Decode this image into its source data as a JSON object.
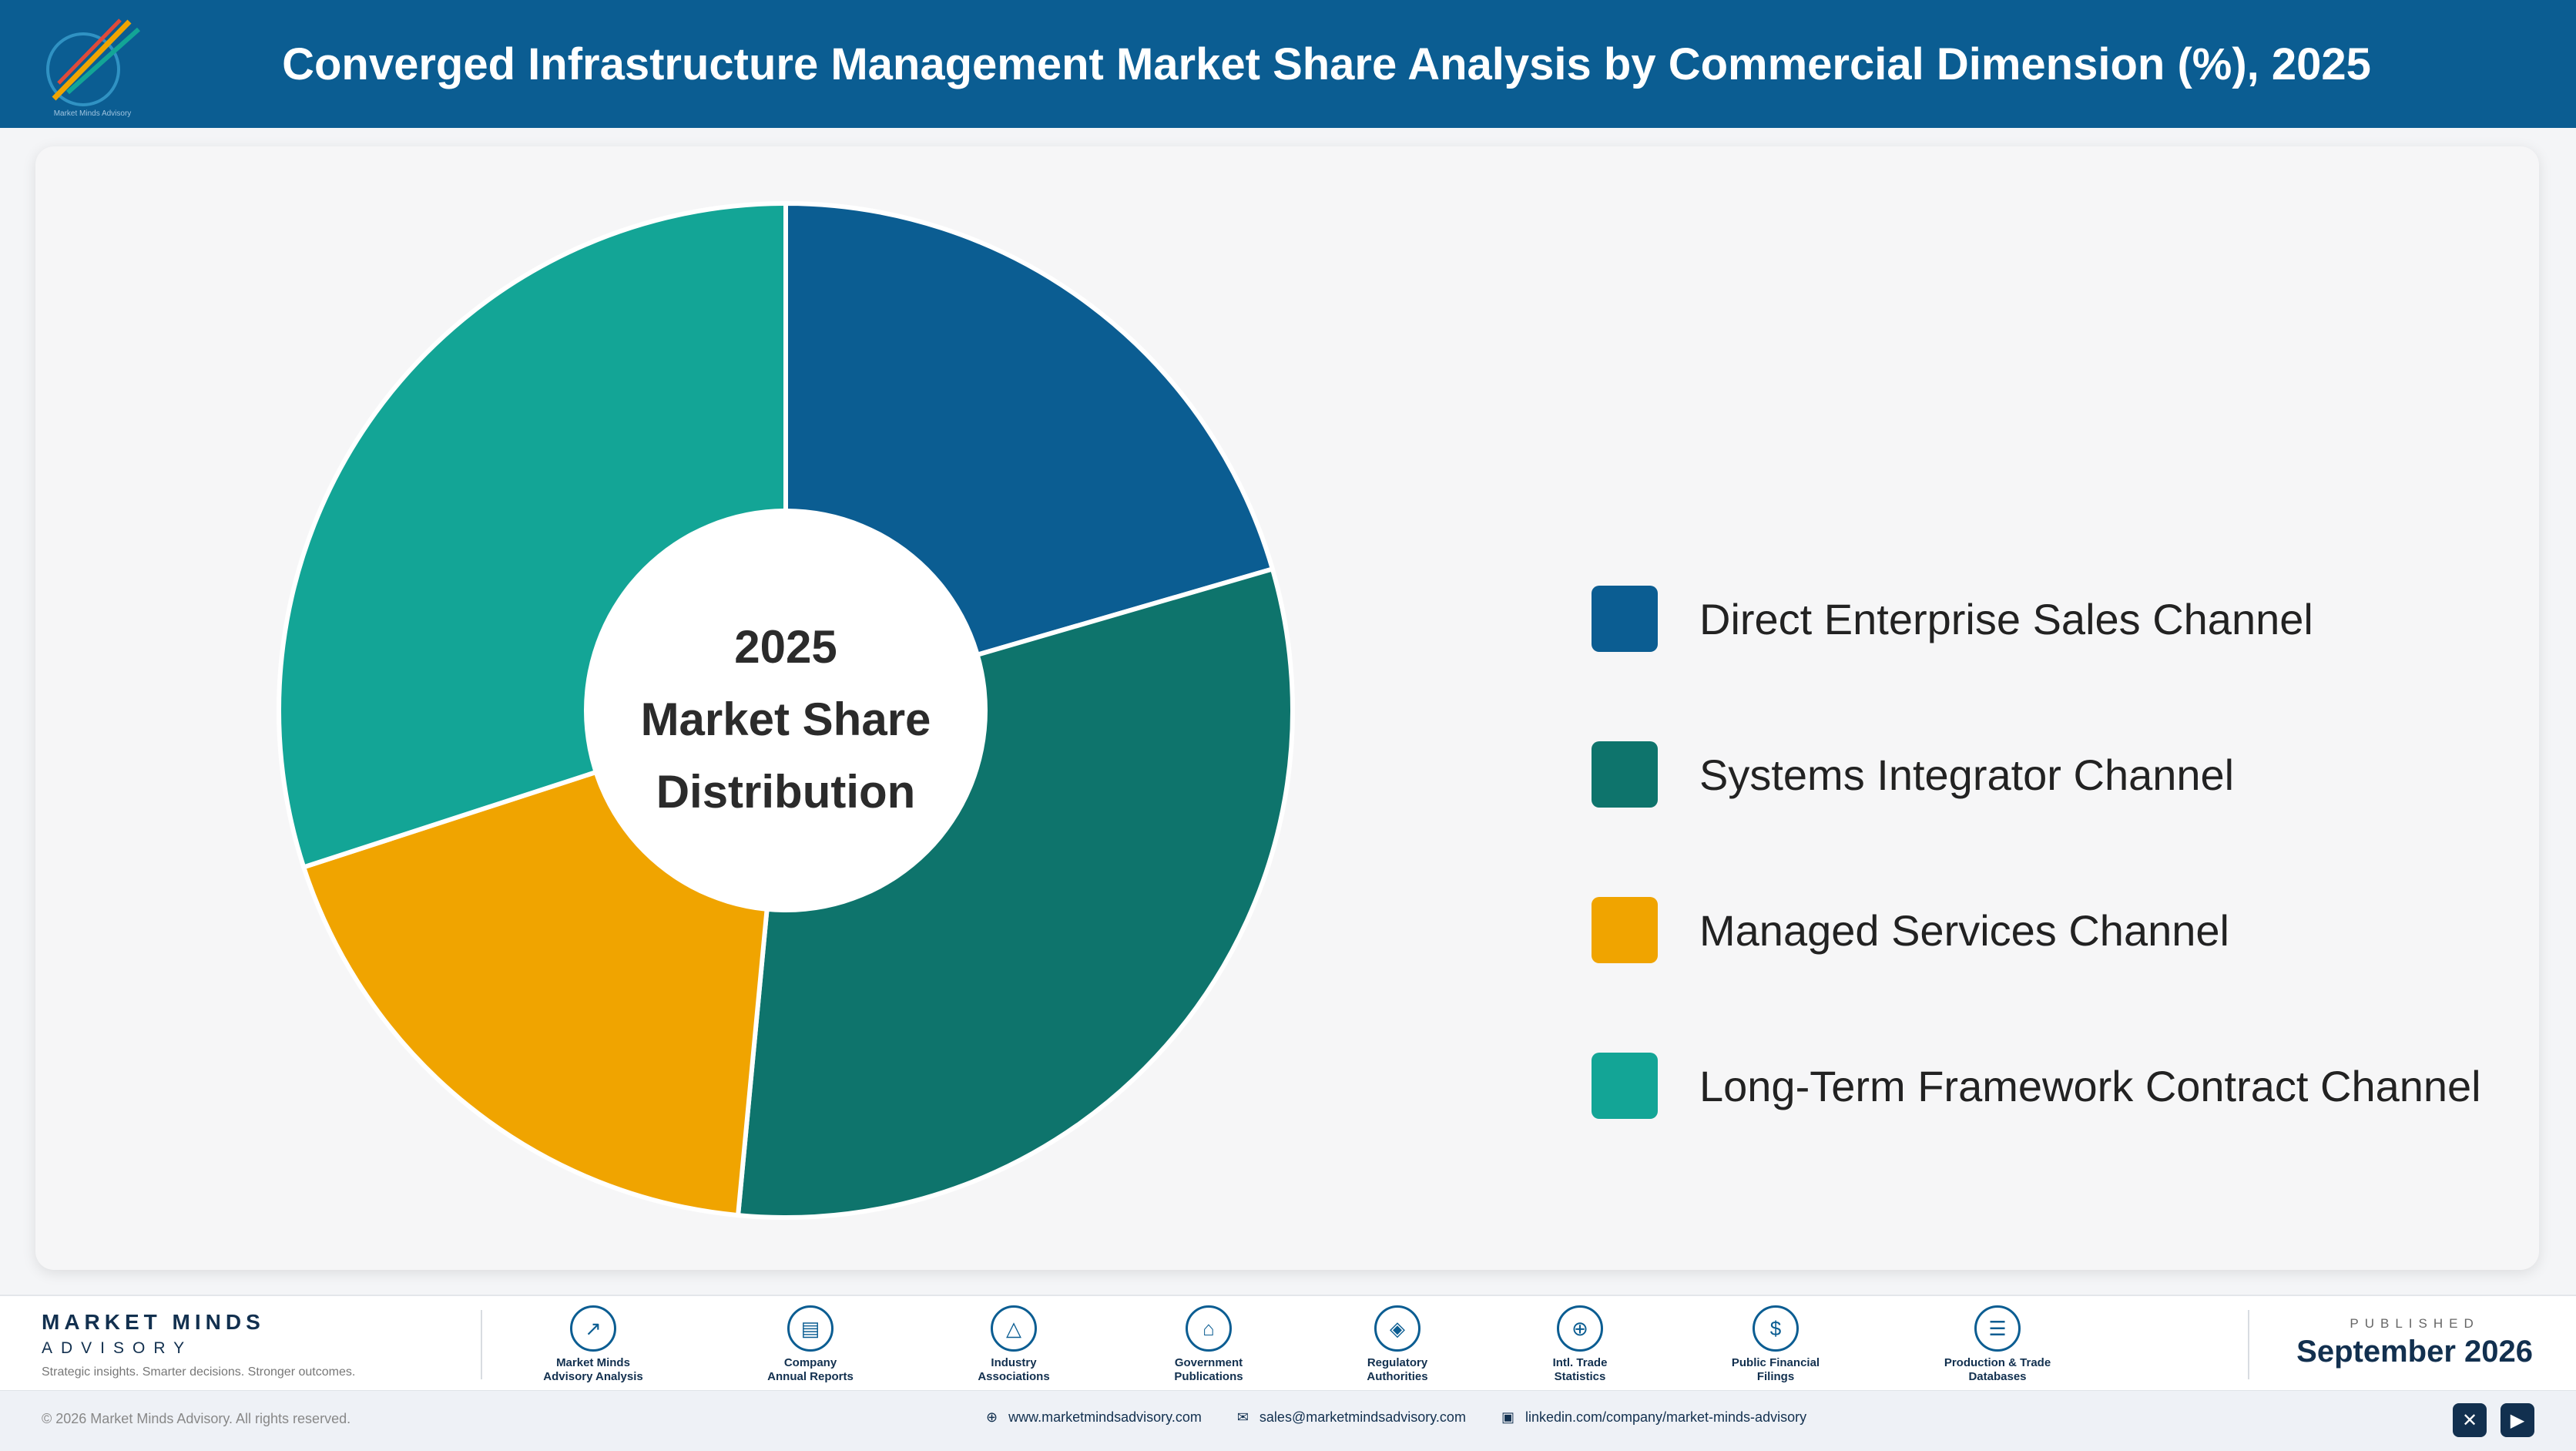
{
  "header": {
    "title": "Converged Infrastructure Management Market Share Analysis by Commercial Dimension (%), 2025",
    "logo_text": "Market Minds Advisory"
  },
  "chart_data": {
    "type": "pie",
    "donut": true,
    "center_text": [
      "2025",
      "Market Share",
      "Distribution"
    ],
    "categories": [
      "Direct Enterprise Sales Channel",
      "Systems Integrator Channel",
      "Managed Services Channel",
      "Long-Term Framework Contract Channel"
    ],
    "values": [
      20.5,
      31.0,
      18.5,
      30.0
    ],
    "colors": [
      "#0b5d92",
      "#0e746c",
      "#f0a400",
      "#13a596"
    ],
    "legend_position": "right",
    "data_labels": false
  },
  "footer": {
    "brand_name": "MARKET MINDS",
    "brand_sub": "ADVISORY",
    "tagline": "Strategic insights. Smarter decisions. Stronger outcomes.",
    "sources": [
      {
        "line1": "Market Minds",
        "line2": "Advisory Analysis",
        "icon": "trend-icon",
        "glyph": "↗"
      },
      {
        "line1": "Company",
        "line2": "Annual Reports",
        "icon": "document-icon",
        "glyph": "▤"
      },
      {
        "line1": "Industry",
        "line2": "Associations",
        "icon": "network-icon",
        "glyph": "△"
      },
      {
        "line1": "Government",
        "line2": "Publications",
        "icon": "building-icon",
        "glyph": "⌂"
      },
      {
        "line1": "Regulatory",
        "line2": "Authorities",
        "icon": "shield-icon",
        "glyph": "◈"
      },
      {
        "line1": "Intl. Trade",
        "line2": "Statistics",
        "icon": "globe-icon",
        "glyph": "⊕"
      },
      {
        "line1": "Public Financial",
        "line2": "Filings",
        "icon": "coin-icon",
        "glyph": "$"
      },
      {
        "line1": "Production & Trade",
        "line2": "Databases",
        "icon": "database-icon",
        "glyph": "☰"
      }
    ],
    "published_label": "PUBLISHED",
    "published_date": "September 2026"
  },
  "bottom_bar": {
    "copyright": "© 2026 Market Minds Advisory. All rights reserved.",
    "website": "www.marketmindsadvisory.com",
    "email": "sales@marketmindsadvisory.com",
    "linkedin": "linkedin.com/company/market-minds-advisory"
  }
}
